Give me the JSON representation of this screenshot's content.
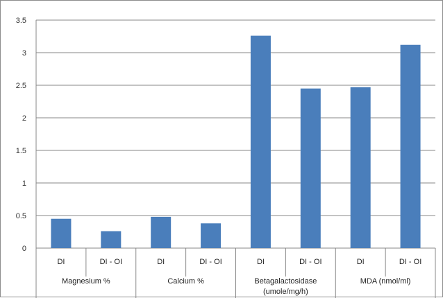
{
  "chart_data": {
    "type": "bar",
    "title": "",
    "xlabel": "",
    "ylabel": "",
    "ylim": [
      0,
      3.5
    ],
    "y_ticks": [
      "0",
      "0.5",
      "1",
      "1.5",
      "2",
      "2.5",
      "3",
      "3.5"
    ],
    "grid": "horizontal",
    "legend": "none",
    "bar_color": "#4a7ebb",
    "categories": [
      "DI",
      "DI - OI",
      "DI",
      "DI - OI",
      "DI",
      "DI - OI",
      "DI",
      "DI - OI"
    ],
    "groups": [
      {
        "label_lines": [
          "Magnesium %"
        ]
      },
      {
        "label_lines": [
          "Calcium %"
        ]
      },
      {
        "label_lines": [
          "Betagalactosidase",
          "(umole/mg/h)"
        ]
      },
      {
        "label_lines": [
          "MDA (nmol/ml)"
        ]
      }
    ],
    "values": [
      0.45,
      0.26,
      0.48,
      0.38,
      3.26,
      2.45,
      2.47,
      3.12
    ]
  }
}
